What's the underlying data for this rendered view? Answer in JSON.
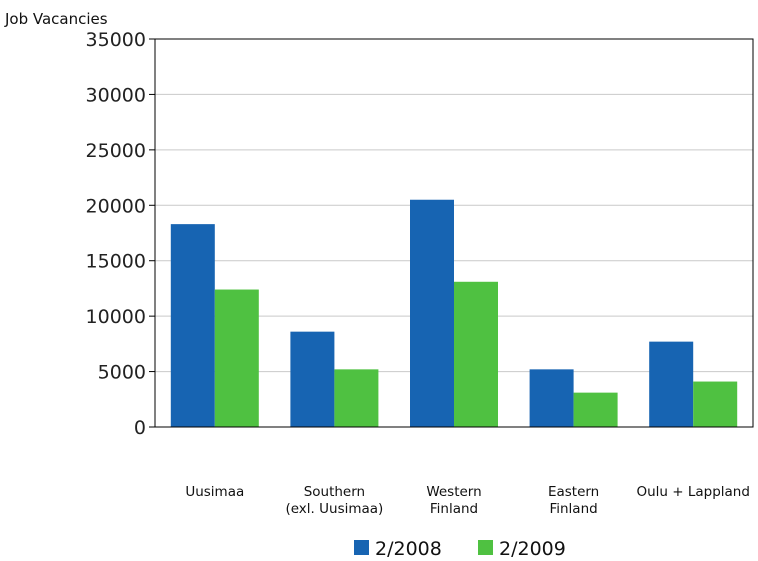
{
  "chart_data": {
    "type": "bar",
    "ylabel": "Job Vacancies",
    "ylim": [
      0,
      35000
    ],
    "yticks": [
      0,
      5000,
      10000,
      15000,
      20000,
      25000,
      30000,
      35000
    ],
    "grid": true,
    "legend_position": "bottom",
    "categories": [
      [
        "Uusimaa"
      ],
      [
        "Southern",
        "(exl. Uusimaa)"
      ],
      [
        "Western",
        "Finland"
      ],
      [
        "Eastern",
        "Finland"
      ],
      [
        "Oulu + Lappland"
      ]
    ],
    "series": [
      {
        "name": "2/2008",
        "color": "#1764b2",
        "values": [
          18300,
          8600,
          20500,
          5200,
          7700
        ]
      },
      {
        "name": "2/2009",
        "color": "#4fc141",
        "values": [
          12400,
          5200,
          13100,
          3100,
          4100
        ]
      }
    ]
  }
}
